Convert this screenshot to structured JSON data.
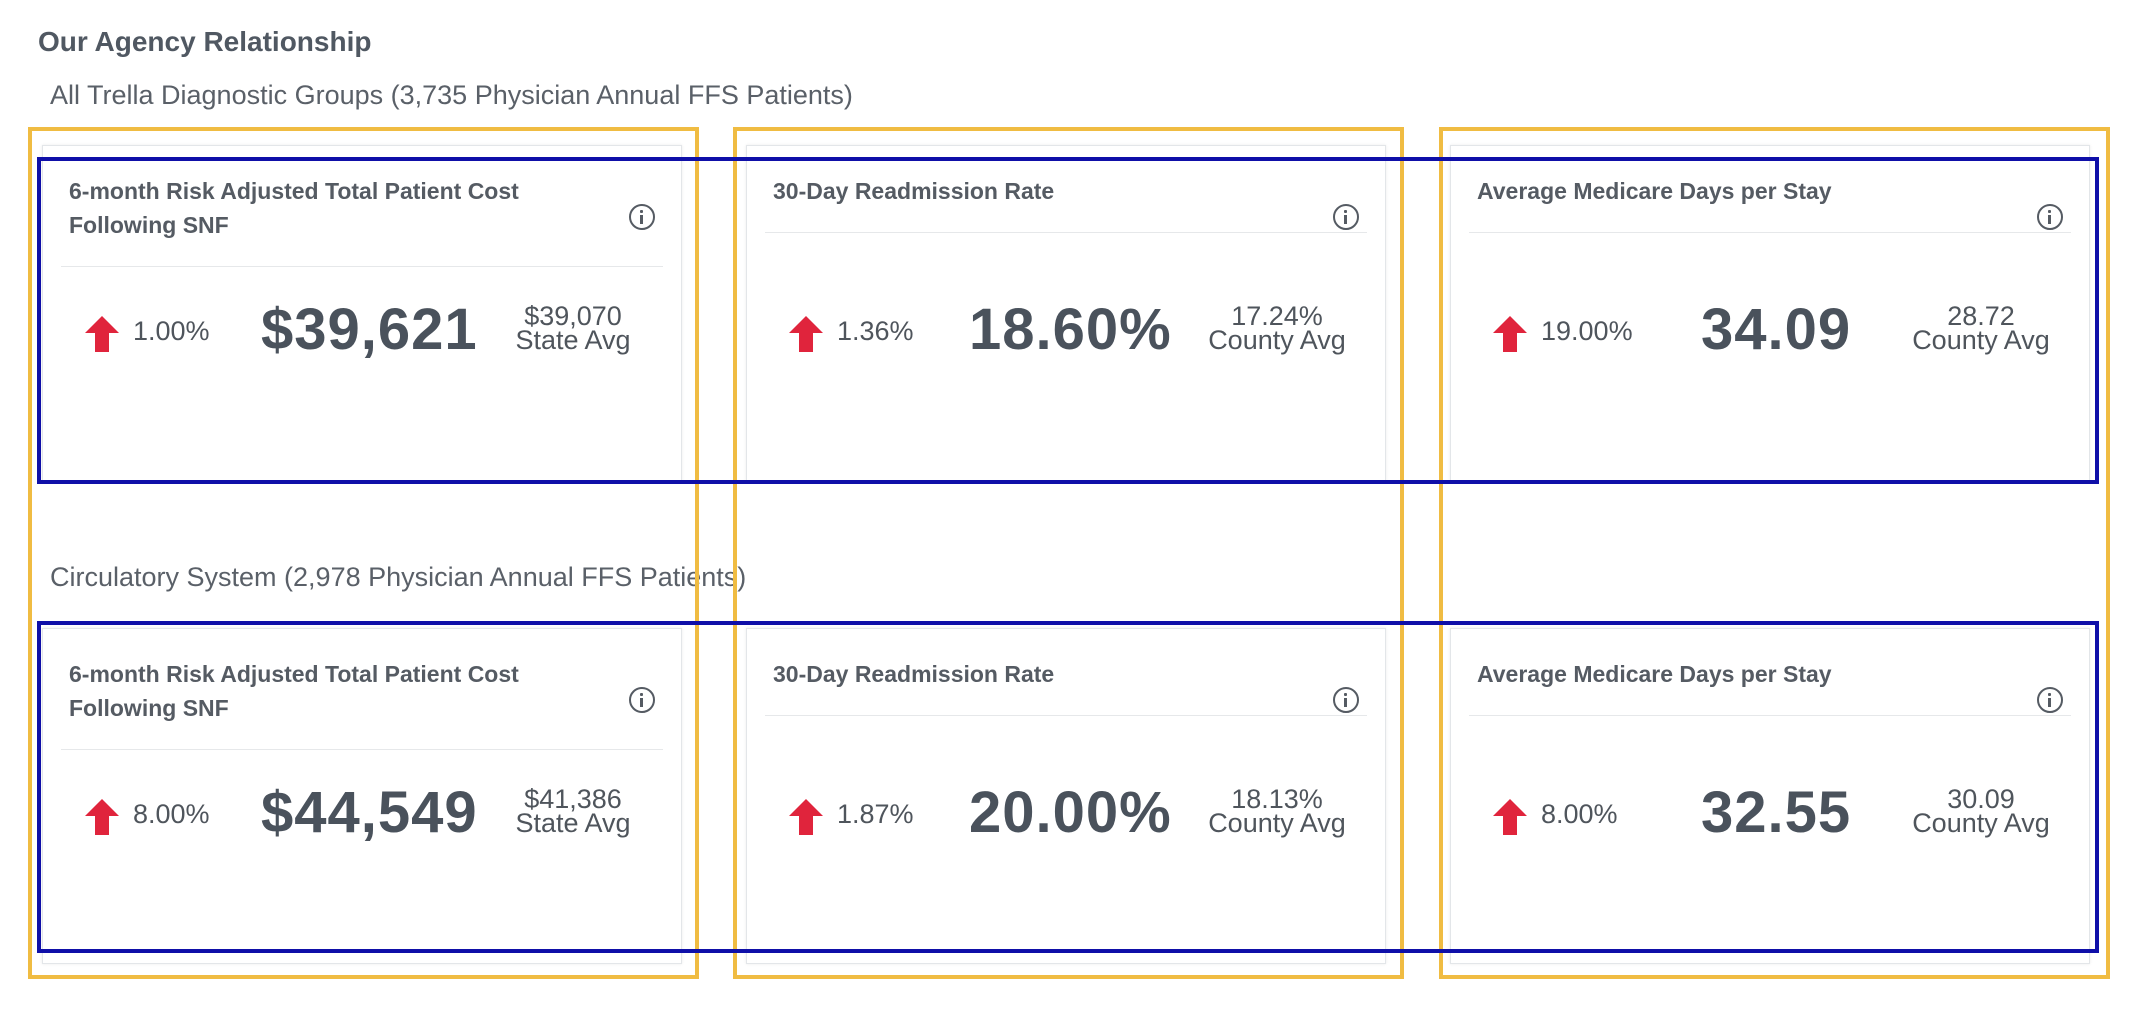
{
  "page": {
    "title": "Our Agency Relationship"
  },
  "groups": [
    {
      "title": "All Trella Diagnostic Groups (3,735 Physician Annual FFS Patients)",
      "cards": [
        {
          "title": "6-month Risk Adjusted Total Patient Cost Following SNF",
          "icon": "info-icon",
          "change": "1.00%",
          "trend": "up",
          "value": "$39,621",
          "avg_value": "$39,070",
          "avg_label": "State Avg"
        },
        {
          "title": "30-Day Readmission Rate",
          "icon": "info-icon",
          "change": "1.36%",
          "trend": "up",
          "value": "18.60%",
          "avg_value": "17.24%",
          "avg_label": "County Avg"
        },
        {
          "title": "Average Medicare Days per Stay",
          "icon": "info-icon",
          "change": "19.00%",
          "trend": "up",
          "value": "34.09",
          "avg_value": "28.72",
          "avg_label": "County Avg"
        }
      ]
    },
    {
      "title": "Circulatory System (2,978 Physician Annual FFS Patients)",
      "cards": [
        {
          "title": "6-month Risk Adjusted Total Patient Cost Following SNF",
          "icon": "info-icon",
          "change": "8.00%",
          "trend": "up",
          "value": "$44,549",
          "avg_value": "$41,386",
          "avg_label": "State Avg"
        },
        {
          "title": "30-Day Readmission Rate",
          "icon": "info-icon",
          "change": "1.87%",
          "trend": "up",
          "value": "20.00%",
          "avg_value": "18.13%",
          "avg_label": "County Avg"
        },
        {
          "title": "Average Medicare Days per Stay",
          "icon": "info-icon",
          "change": "8.00%",
          "trend": "up",
          "value": "32.55",
          "avg_value": "30.09",
          "avg_label": "County Avg"
        }
      ]
    }
  ],
  "colors": {
    "trend_up": "#e0243c",
    "highlight_column": "#f0bc42",
    "highlight_row": "#0f0fa8",
    "text": "#555b63"
  }
}
